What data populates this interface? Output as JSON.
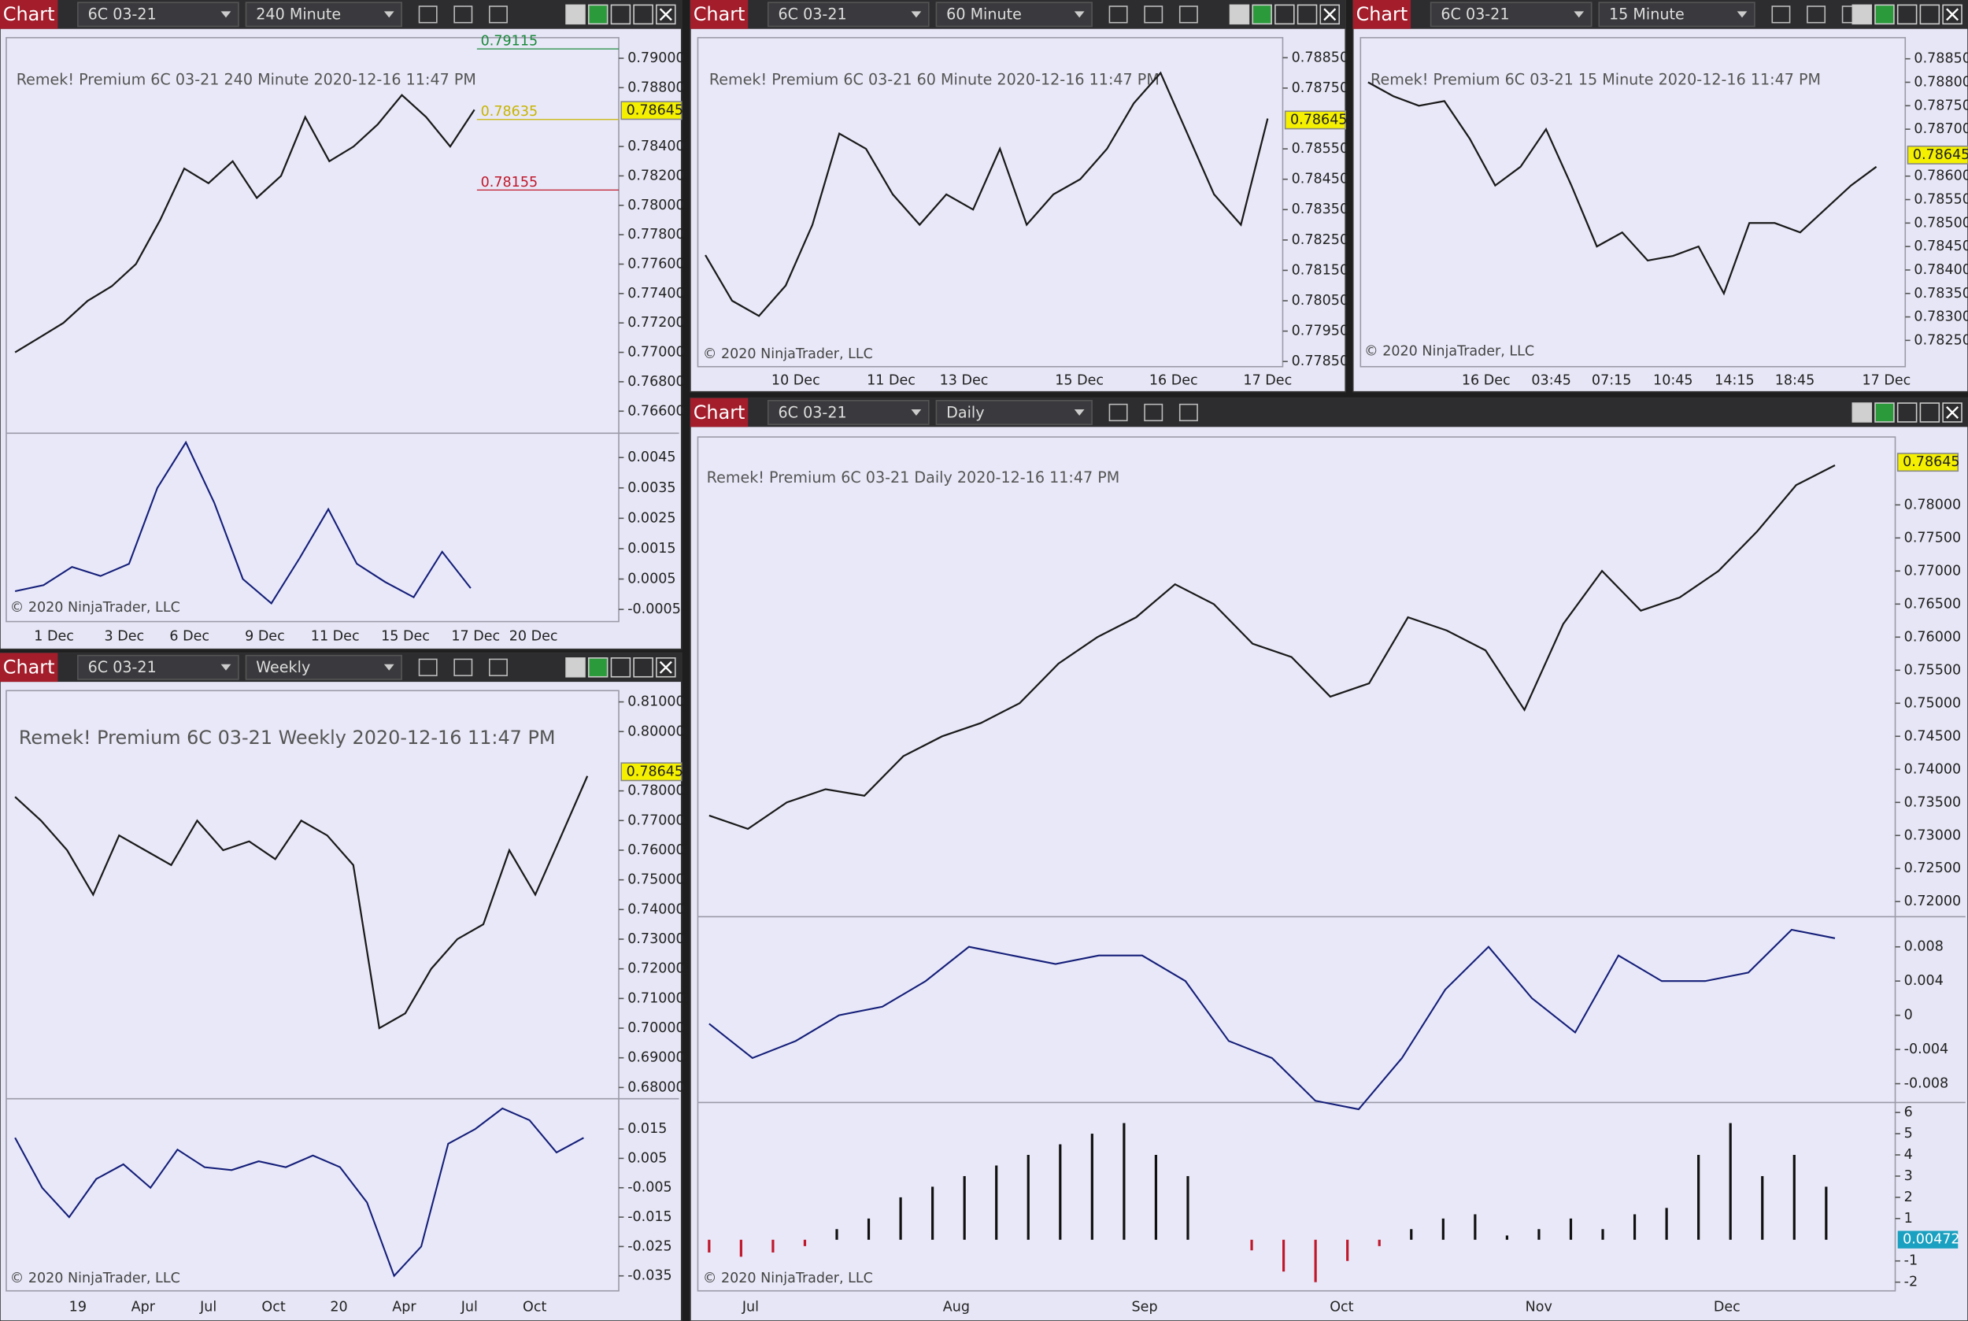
{
  "panels": [
    {
      "toolbar": {
        "label": "Chart",
        "instrument": "6C 03-21",
        "timeframe": "240 Minute"
      },
      "info": "Remek!  Premium  6C 03-21  240 Minute  2020-12-16 11:47 PM",
      "copyright": "© 2020 NinjaTrader, LLC",
      "price": {
        "ylim": [
          0.7645,
          0.7914
        ],
        "yticks": [
          {
            "value": 0.79,
            "label": "0.79000"
          },
          {
            "value": 0.788,
            "label": "0.78800"
          },
          {
            "value": 0.784,
            "label": "0.78400"
          },
          {
            "value": 0.782,
            "label": "0.78200"
          },
          {
            "value": 0.78,
            "label": "0.78000"
          },
          {
            "value": 0.778,
            "label": "0.77800"
          },
          {
            "value": 0.776,
            "label": "0.77600"
          },
          {
            "value": 0.774,
            "label": "0.77400"
          },
          {
            "value": 0.772,
            "label": "0.77200"
          },
          {
            "value": 0.77,
            "label": "0.77000"
          },
          {
            "value": 0.768,
            "label": "0.76800"
          },
          {
            "value": 0.766,
            "label": "0.76600"
          }
        ],
        "last": 0.78645,
        "close": [
          0.77,
          0.771,
          0.772,
          0.7735,
          0.7745,
          0.776,
          0.779,
          0.7825,
          0.7815,
          0.783,
          0.7805,
          0.782,
          0.786,
          0.783,
          0.784,
          0.7855,
          0.7875,
          0.786,
          0.784,
          0.7865
        ]
      },
      "labels": [
        {
          "value": 0.79115,
          "color": "#1a8a3a"
        },
        {
          "value": 0.78635,
          "color": "#c8b400"
        },
        {
          "value": 0.78155,
          "color": "#c0182b"
        }
      ],
      "sub": {
        "ylim": [
          -0.0009,
          0.0053
        ],
        "yticks": [
          0.0045,
          0.0035,
          0.0025,
          0.0015,
          0.0005,
          -0.0005
        ],
        "values": [
          0.0001,
          0.0003,
          0.0009,
          0.0006,
          0.001,
          0.0035,
          0.005,
          0.003,
          0.0005,
          -0.0003,
          0.0012,
          0.0028,
          0.001,
          0.0004,
          -0.0001,
          0.0014,
          0.0002
        ]
      },
      "xlabels": [
        "1 Dec",
        "3 Dec",
        "6 Dec",
        "9 Dec",
        "11 Dec",
        "15 Dec",
        "17 Dec",
        "20 Dec"
      ]
    },
    {
      "toolbar": {
        "label": "Chart",
        "instrument": "6C 03-21",
        "timeframe": "60 Minute"
      },
      "info": "Remek!  Premium  6C 03-21  60 Minute  2020-12-16 11:47 PM",
      "copyright": "© 2020 NinjaTrader, LLC",
      "price": {
        "ylim": [
          0.77833,
          0.78916
        ],
        "yticks": [
          {
            "value": 0.7885,
            "label": "0.78850"
          },
          {
            "value": 0.7875,
            "label": "0.78750"
          },
          {
            "value": 0.7855,
            "label": "0.78550"
          },
          {
            "value": 0.7845,
            "label": "0.78450"
          },
          {
            "value": 0.7835,
            "label": "0.78350"
          },
          {
            "value": 0.7825,
            "label": "0.78250"
          },
          {
            "value": 0.7815,
            "label": "0.78150"
          },
          {
            "value": 0.7805,
            "label": "0.78050"
          },
          {
            "value": 0.7795,
            "label": "0.77950"
          },
          {
            "value": 0.7785,
            "label": "0.77850"
          }
        ],
        "last": 0.78645,
        "close": [
          0.782,
          0.7805,
          0.78,
          0.781,
          0.783,
          0.786,
          0.7855,
          0.784,
          0.783,
          0.784,
          0.7835,
          0.7855,
          0.783,
          0.784,
          0.7845,
          0.7855,
          0.787,
          0.788,
          0.786,
          0.784,
          0.783,
          0.7865
        ]
      },
      "xlabels": [
        "10 Dec",
        "11 Dec",
        "13 Dec",
        "15 Dec",
        "16 Dec",
        "17 Dec"
      ]
    },
    {
      "toolbar": {
        "label": "Chart",
        "instrument": "6C 03-21",
        "timeframe": "15 Minute"
      },
      "info": "Remek!  Premium  6C 03-21  15 Minute  2020-12-16 11:47 PM",
      "copyright": "© 2020 NinjaTrader, LLC",
      "price": {
        "ylim": [
          0.78194,
          0.78895
        ],
        "yticks": [
          {
            "value": 0.7885,
            "label": "0.78850"
          },
          {
            "value": 0.788,
            "label": "0.78800"
          },
          {
            "value": 0.7875,
            "label": "0.78750"
          },
          {
            "value": 0.787,
            "label": "0.78700"
          },
          {
            "value": 0.786,
            "label": "0.78600"
          },
          {
            "value": 0.7855,
            "label": "0.78550"
          },
          {
            "value": 0.785,
            "label": "0.78500"
          },
          {
            "value": 0.7845,
            "label": "0.78450"
          },
          {
            "value": 0.784,
            "label": "0.78400"
          },
          {
            "value": 0.7835,
            "label": "0.78350"
          },
          {
            "value": 0.783,
            "label": "0.78300"
          },
          {
            "value": 0.7825,
            "label": "0.78250"
          }
        ],
        "last": 0.78645,
        "close": [
          0.788,
          0.7877,
          0.7875,
          0.7876,
          0.7868,
          0.7858,
          0.7862,
          0.787,
          0.7858,
          0.7845,
          0.7848,
          0.7842,
          0.7843,
          0.7845,
          0.7835,
          0.785,
          0.785,
          0.7848,
          0.7853,
          0.7858,
          0.7862
        ]
      },
      "xlabels": [
        "16 Dec",
        "03:45",
        "07:15",
        "10:45",
        "14:15",
        "18:45",
        "17 Dec"
      ]
    },
    {
      "toolbar": {
        "label": "Chart",
        "instrument": "6C 03-21",
        "timeframe": "Weekly"
      },
      "info": "Remek!  Premium  6C 03-21  Weekly  2020-12-16 11:47 PM",
      "copyright": "© 2020 NinjaTrader, LLC",
      "price": {
        "ylim": [
          0.6762,
          0.8138
        ],
        "yticks": [
          {
            "value": 0.81,
            "label": "0.81000"
          },
          {
            "value": 0.8,
            "label": "0.80000"
          },
          {
            "value": 0.78,
            "label": "0.78000"
          },
          {
            "value": 0.77,
            "label": "0.77000"
          },
          {
            "value": 0.76,
            "label": "0.76000"
          },
          {
            "value": 0.75,
            "label": "0.75000"
          },
          {
            "value": 0.74,
            "label": "0.74000"
          },
          {
            "value": 0.73,
            "label": "0.73000"
          },
          {
            "value": 0.72,
            "label": "0.72000"
          },
          {
            "value": 0.71,
            "label": "0.71000"
          },
          {
            "value": 0.7,
            "label": "0.70000"
          },
          {
            "value": 0.69,
            "label": "0.69000"
          },
          {
            "value": 0.68,
            "label": "0.68000"
          }
        ],
        "last": 0.78645,
        "close": [
          0.778,
          0.77,
          0.76,
          0.745,
          0.765,
          0.76,
          0.755,
          0.77,
          0.76,
          0.763,
          0.757,
          0.77,
          0.765,
          0.755,
          0.7,
          0.705,
          0.72,
          0.73,
          0.735,
          0.76,
          0.745,
          0.765,
          0.785
        ]
      },
      "sub": {
        "ylim": [
          -0.0401,
          0.0253
        ],
        "yticks": [
          0.015,
          0.005,
          -0.005,
          -0.015,
          -0.025,
          -0.035
        ],
        "values": [
          0.012,
          -0.005,
          -0.015,
          -0.002,
          0.003,
          -0.005,
          0.008,
          0.002,
          0.001,
          0.004,
          0.002,
          0.006,
          0.002,
          -0.01,
          -0.035,
          -0.025,
          0.01,
          0.015,
          0.022,
          0.018,
          0.007,
          0.012
        ]
      },
      "xlabels": [
        "19",
        "Apr",
        "Jul",
        "Oct",
        "20",
        "Apr",
        "Jul",
        "Oct"
      ]
    },
    {
      "toolbar": {
        "label": "Chart",
        "instrument": "6C 03-21",
        "timeframe": "Daily"
      },
      "info": "Remek!  Premium  6C 03-21  Daily  2020-12-16 11:47 PM",
      "copyright": "© 2020 NinjaTrader, LLC",
      "price": {
        "ylim": [
          0.71772,
          0.79027
        ],
        "yticks": [
          {
            "value": 0.78,
            "label": "0.78000"
          },
          {
            "value": 0.775,
            "label": "0.77500"
          },
          {
            "value": 0.77,
            "label": "0.77000"
          },
          {
            "value": 0.765,
            "label": "0.76500"
          },
          {
            "value": 0.76,
            "label": "0.76000"
          },
          {
            "value": 0.755,
            "label": "0.75500"
          },
          {
            "value": 0.75,
            "label": "0.75000"
          },
          {
            "value": 0.745,
            "label": "0.74500"
          },
          {
            "value": 0.74,
            "label": "0.74000"
          },
          {
            "value": 0.735,
            "label": "0.73500"
          },
          {
            "value": 0.73,
            "label": "0.73000"
          },
          {
            "value": 0.725,
            "label": "0.72500"
          },
          {
            "value": 0.72,
            "label": "0.72000"
          }
        ],
        "last": 0.78645,
        "close": [
          0.733,
          0.731,
          0.735,
          0.737,
          0.736,
          0.742,
          0.745,
          0.747,
          0.75,
          0.756,
          0.76,
          0.763,
          0.768,
          0.765,
          0.759,
          0.757,
          0.751,
          0.753,
          0.763,
          0.761,
          0.758,
          0.749,
          0.762,
          0.77,
          0.764,
          0.766,
          0.77,
          0.776,
          0.783,
          0.786
        ]
      },
      "sub": {
        "ylim": [
          -0.0102,
          0.01153
        ],
        "yticks": [
          0.008,
          0.004,
          0,
          -0.004,
          -0.008
        ],
        "values": [
          -0.001,
          -0.005,
          -0.003,
          0,
          0.001,
          0.004,
          0.008,
          0.007,
          0.006,
          0.007,
          0.007,
          0.004,
          -0.003,
          -0.005,
          -0.01,
          -0.011,
          -0.005,
          0.003,
          0.008,
          0.002,
          -0.002,
          0.007,
          0.004,
          0.004,
          0.005,
          0.01,
          0.009
        ]
      },
      "hist": {
        "ylim": [
          -2.41,
          6.47
        ],
        "yticks": [
          6,
          5,
          4,
          3,
          2,
          1,
          -1,
          -2
        ],
        "last": 0.00472,
        "values": [
          -0.6,
          -0.8,
          -0.6,
          -0.3,
          0.5,
          1,
          2,
          2.5,
          3,
          3.5,
          4,
          4.5,
          5,
          5.5,
          4,
          3,
          0,
          -0.5,
          -1.5,
          -2,
          -1,
          -0.3,
          0.5,
          1,
          1.2,
          0.2,
          0.5,
          1,
          0.5,
          1.2,
          1.5,
          4,
          5.5,
          3,
          4,
          2.5
        ]
      },
      "xlabels": [
        "Jul",
        "Aug",
        "Sep",
        "Oct",
        "Nov",
        "Dec"
      ]
    }
  ]
}
